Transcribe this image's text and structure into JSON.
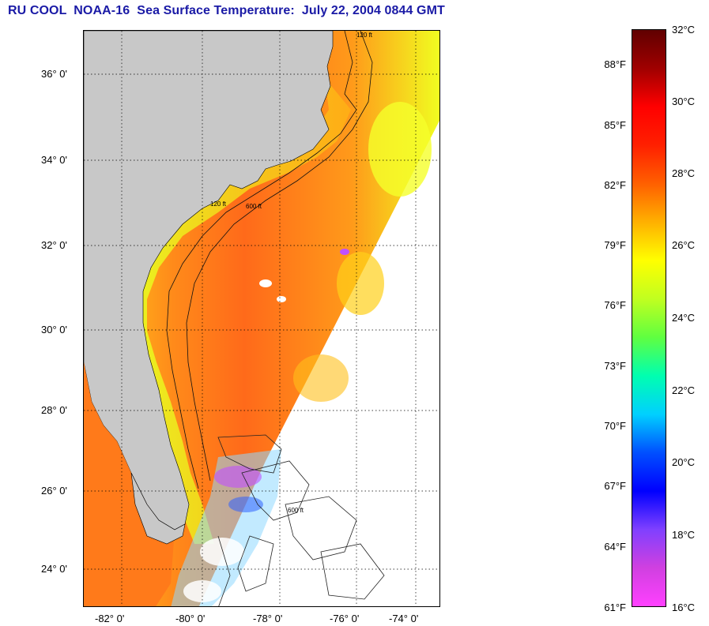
{
  "title": "RU COOL  NOAA-16  Sea Surface Temperature:  July 22, 2004 0844 GMT",
  "map": {
    "lat_labels": [
      "36° 0'",
      "34° 0'",
      "32° 0'",
      "30° 0'",
      "28° 0'",
      "26° 0'",
      "24° 0'"
    ],
    "lon_labels": [
      "-82° 0'",
      "-80° 0'",
      "-78° 0'",
      "-76° 0'",
      "-74° 0'"
    ],
    "contour_labels": [
      "120 ft",
      "600 ft"
    ],
    "colors": {
      "land": "#c8c8c8",
      "sea_warm": "#ff6a1a",
      "sea_mid": "#ffb015",
      "sea_cool": "#ffe81a",
      "cold_band": "#a0ff40",
      "cloud_magenta": "#c050ff",
      "cloud_blue": "#3060ff"
    }
  },
  "colorbar": {
    "celsius": [
      "32°C",
      "30°C",
      "28°C",
      "26°C",
      "24°C",
      "22°C",
      "20°C",
      "18°C",
      "16°C"
    ],
    "fahrenheit": [
      "88°F",
      "85°F",
      "82°F",
      "79°F",
      "76°F",
      "73°F",
      "70°F",
      "67°F",
      "64°F",
      "61°F"
    ],
    "colors": [
      "#ff40ff",
      "#d040e0",
      "#8040ff",
      "#0000ff",
      "#0050ff",
      "#00d0ff",
      "#00ffb0",
      "#60ff40",
      "#c0ff20",
      "#ffff00",
      "#ffb000",
      "#ff6000",
      "#ff2000",
      "#ff0000",
      "#a00000",
      "#600000"
    ]
  }
}
